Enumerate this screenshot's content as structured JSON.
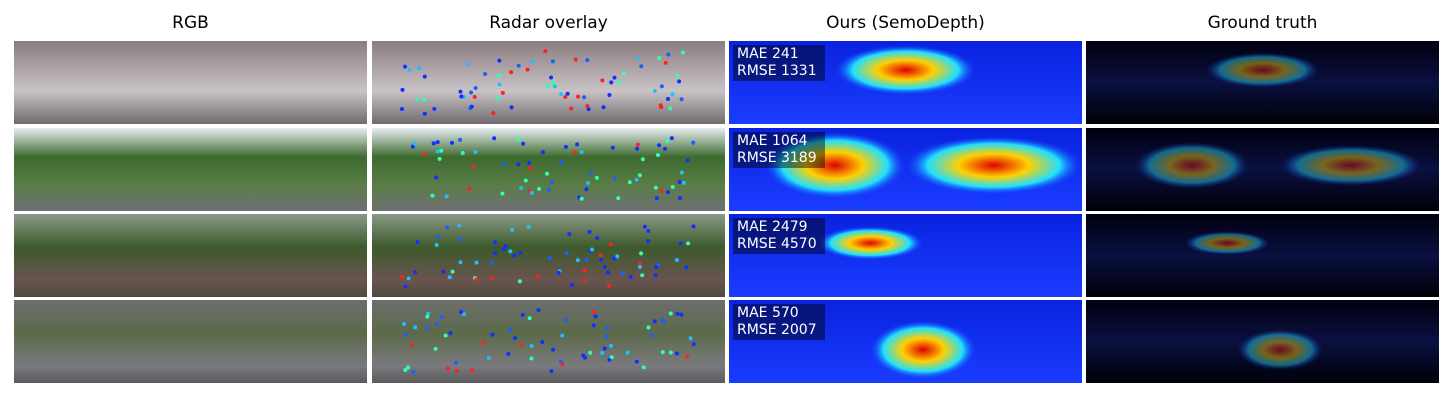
{
  "columns": [
    "RGB",
    "Radar overlay",
    "Ours (SemoDepth)",
    "Ground truth"
  ],
  "rows": [
    {
      "mae": "MAE 241",
      "rmse": "RMSE 1331"
    },
    {
      "mae": "MAE 1064",
      "rmse": "RMSE 3189"
    },
    {
      "mae": "MAE 2479",
      "rmse": "RMSE 4570"
    },
    {
      "mae": "MAE 570",
      "rmse": "RMSE 2007"
    }
  ]
}
